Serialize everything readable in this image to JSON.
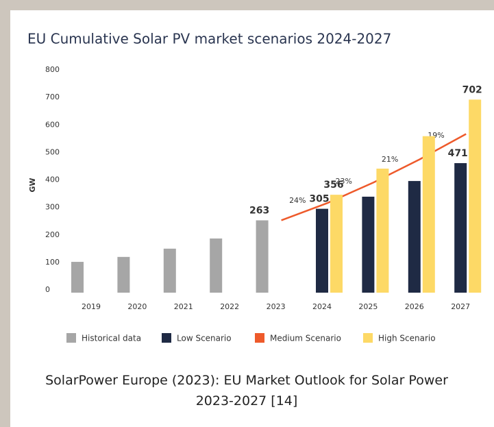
{
  "chart_data": {
    "type": "bar",
    "title": "EU Cumulative Solar PV market scenarios 2024-2027",
    "y_label": "GW",
    "categories": [
      "2019",
      "2020",
      "2021",
      "2022",
      "2023",
      "2024",
      "2025",
      "2026",
      "2027"
    ],
    "series": [
      {
        "name": "Historical data",
        "type": "bar",
        "color": "#a6a6a6",
        "values": [
          112,
          130,
          160,
          197,
          263,
          null,
          null,
          null,
          null
        ],
        "value_labels": [
          null,
          null,
          null,
          null,
          "263",
          null,
          null,
          null,
          null
        ]
      },
      {
        "name": "Low Scenario",
        "type": "bar",
        "color": "#1f2a44",
        "values": [
          null,
          null,
          null,
          null,
          null,
          305,
          349,
          406,
          471
        ],
        "value_labels": [
          null,
          null,
          null,
          null,
          null,
          "305",
          null,
          null,
          "471"
        ]
      },
      {
        "name": "Medium Scenario",
        "type": "line",
        "color": "#ee5a2b",
        "values": [
          null,
          null,
          null,
          null,
          263,
          326,
          401,
          485,
          577
        ],
        "growth_labels": [
          "24%",
          "23%",
          "21%",
          "19%"
        ]
      },
      {
        "name": "High Scenario",
        "type": "bar",
        "color": "#fdd966",
        "values": [
          null,
          null,
          null,
          null,
          null,
          356,
          451,
          569,
          702
        ],
        "value_labels": [
          null,
          null,
          null,
          null,
          null,
          "356",
          null,
          null,
          "702"
        ]
      }
    ],
    "ylim": [
      0,
      800
    ],
    "yticks": [
      0,
      100,
      200,
      300,
      400,
      500,
      600,
      700,
      800
    ],
    "grid": false,
    "legend": "bottom"
  },
  "caption": "SolarPower Europe (2023): EU Market Outlook for Solar Power 2023-2027 [14]"
}
